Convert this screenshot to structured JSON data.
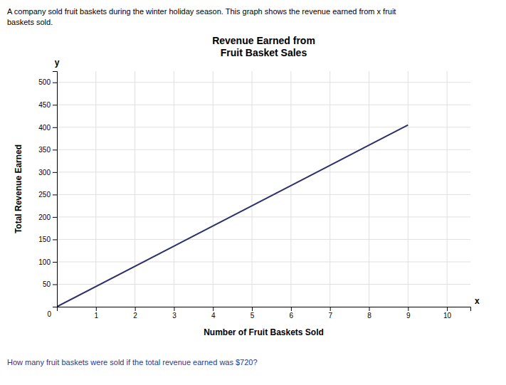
{
  "chart_data": {
    "type": "line",
    "title": "Revenue Earned from\nFruit Basket Sales",
    "x_label": "Number of Fruit Baskets Sold",
    "y_label": "Total Revenue Earned",
    "annotations": [
      "A company sold fruit baskets during the winter holiday season. This graph shows the revenue earned from x fruit\nbaskets sold.",
      "How many fruit baskets were sold if the total revenue earned was $720?",
      "x",
      "y",
      "0"
    ],
    "x": [
      0,
      9
    ],
    "values": [
      0,
      405
    ],
    "color": "#2d3168",
    "xlim": [
      0,
      10.6
    ],
    "ylim": [
      0,
      525
    ],
    "xticks": [
      1,
      2,
      3,
      4,
      5,
      6,
      7,
      8,
      9,
      10
    ],
    "yticks": [
      50,
      100,
      150,
      200,
      250,
      300,
      350,
      400,
      450,
      500
    ],
    "grid": true
  }
}
